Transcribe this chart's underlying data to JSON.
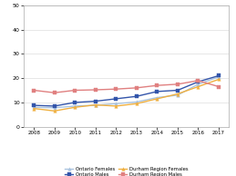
{
  "years": [
    2008,
    2009,
    2010,
    2011,
    2012,
    2013,
    2014,
    2015,
    2016,
    2017
  ],
  "ontario_females": [
    8.0,
    7.8,
    8.5,
    8.8,
    9.5,
    10.2,
    12.0,
    13.0,
    17.5,
    20.5
  ],
  "ontario_males": [
    8.8,
    8.5,
    10.0,
    10.5,
    11.5,
    12.5,
    14.5,
    15.0,
    18.5,
    21.0
  ],
  "durham_females": [
    7.5,
    6.5,
    8.0,
    9.0,
    8.5,
    9.5,
    11.5,
    13.5,
    16.5,
    19.5
  ],
  "durham_males": [
    15.0,
    14.0,
    15.0,
    15.2,
    15.5,
    16.0,
    17.0,
    17.5,
    19.0,
    16.5
  ],
  "colors": {
    "ontario_females": "#aac4e0",
    "ontario_males": "#3355aa",
    "durham_females": "#f0b040",
    "durham_males": "#e08080"
  },
  "ylim": [
    0,
    50
  ],
  "yticks": [
    0,
    10,
    20,
    30,
    40,
    50
  ],
  "legend_labels": [
    "Ontario Females",
    "Ontario Males",
    "Durham Region Females",
    "Durham Region Males"
  ],
  "background_color": "#ffffff",
  "grid_color": "#dddddd"
}
